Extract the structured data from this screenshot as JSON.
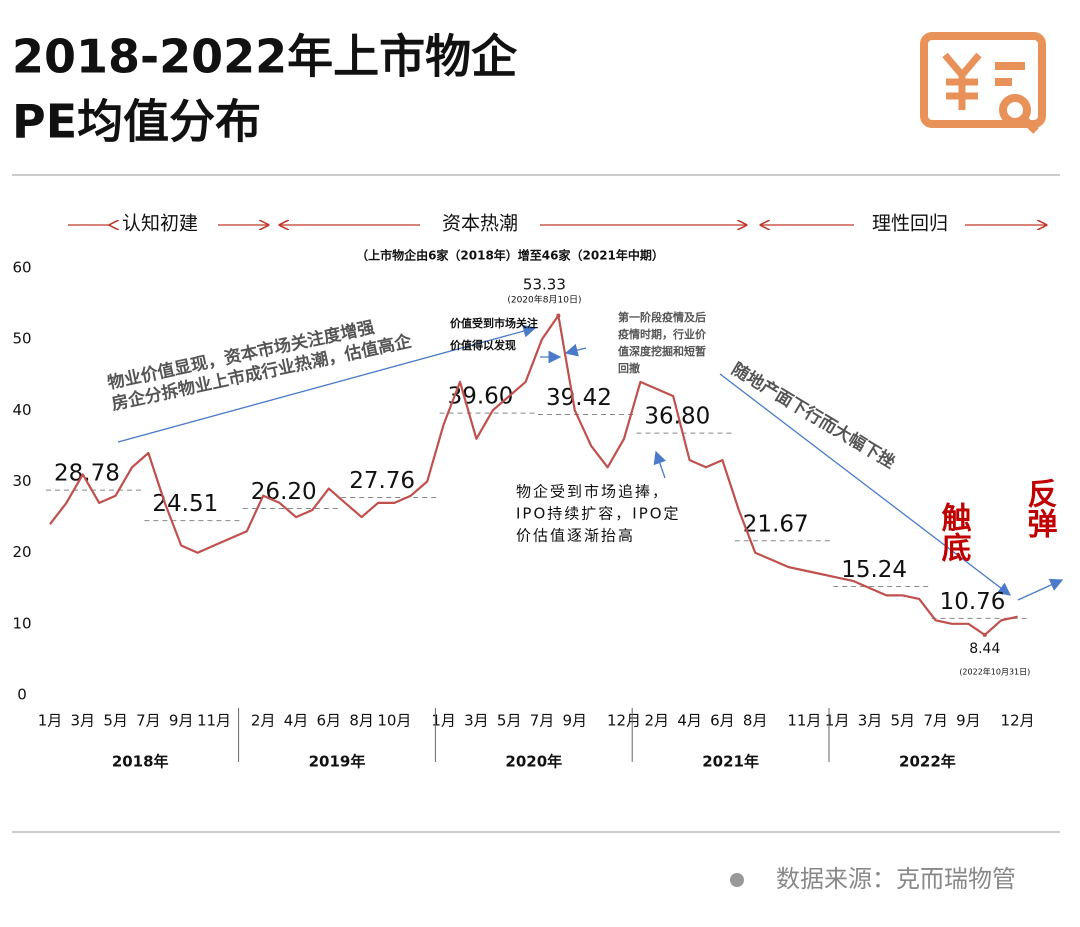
{
  "chart_data": {
    "type": "line",
    "title": [
      "2018-2022年上市物企",
      "PE均值分布"
    ],
    "subtitle": "（上市物企由6家（2018年）增至46家（2021年中期）",
    "phases": [
      "认知初建",
      "资本热潮",
      "理性回归"
    ],
    "x": [
      "2018-01",
      "2018-02",
      "2018-03",
      "2018-04",
      "2018-05",
      "2018-06",
      "2018-07",
      "2018-08",
      "2018-09",
      "2018-10",
      "2018-11",
      "2018-12",
      "2019-01",
      "2019-02",
      "2019-03",
      "2019-04",
      "2019-05",
      "2019-06",
      "2019-07",
      "2019-08",
      "2019-09",
      "2019-10",
      "2019-11",
      "2019-12",
      "2020-01",
      "2020-02",
      "2020-03",
      "2020-04",
      "2020-05",
      "2020-06",
      "2020-07",
      "2020-08",
      "2020-09",
      "2020-10",
      "2020-11",
      "2020-12",
      "2021-01",
      "2021-02",
      "2021-03",
      "2021-04",
      "2021-05",
      "2021-06",
      "2021-07",
      "2021-08",
      "2021-09",
      "2021-10",
      "2021-11",
      "2021-12",
      "2022-01",
      "2022-02",
      "2022-03",
      "2022-04",
      "2022-05",
      "2022-06",
      "2022-07",
      "2022-08",
      "2022-09",
      "2022-10",
      "2022-11",
      "2022-12"
    ],
    "series": [
      {
        "name": "PE均值",
        "color": "#c0504d",
        "values": [
          24,
          27,
          31,
          27,
          28,
          32,
          34,
          27,
          21,
          20,
          21,
          22,
          23,
          28,
          27,
          25,
          26,
          29,
          27,
          25,
          27,
          27,
          28,
          30,
          38,
          44,
          36,
          40,
          42,
          44,
          50,
          53.33,
          40,
          35,
          32,
          36,
          44,
          43,
          42,
          33,
          32,
          33,
          26,
          20,
          19,
          18,
          17.5,
          17,
          16.5,
          16,
          15,
          14,
          14,
          13.5,
          10.5,
          10,
          10,
          8.44,
          10.5,
          11
        ]
      }
    ],
    "peak": {
      "x": "2020-08",
      "value": 53.33,
      "note": "(2020年8月10日)"
    },
    "low": {
      "x": "2022-10",
      "value": 8.44,
      "note": "(2022年10月31日)"
    },
    "averages": [
      {
        "value": 28.78,
        "from": "2018-01",
        "to": "2018-06"
      },
      {
        "value": 24.51,
        "from": "2018-07",
        "to": "2018-12"
      },
      {
        "value": 26.2,
        "label": "26.20",
        "from": "2019-01",
        "to": "2019-06"
      },
      {
        "value": 27.76,
        "from": "2019-07",
        "to": "2019-12"
      },
      {
        "value": 39.6,
        "label": "39.60",
        "from": "2020-01",
        "to": "2020-06"
      },
      {
        "value": 39.42,
        "from": "2020-07",
        "to": "2020-12"
      },
      {
        "value": 36.8,
        "label": "36.80",
        "from": "2021-01",
        "to": "2021-06"
      },
      {
        "value": 21.67,
        "from": "2021-07",
        "to": "2021-12"
      },
      {
        "value": 15.24,
        "from": "2022-01",
        "to": "2022-06"
      },
      {
        "value": 10.76,
        "from": "2022-07",
        "to": "2022-12"
      }
    ],
    "annotations": [
      "物业价值显现，资本市场关注度增强",
      "房企分拆物业上市成行业热潮，估值高企",
      "价值受到市场关注",
      "价值得以发现",
      "第一阶段疫情及后",
      "疫情时期，行业价",
      "值深度挖掘和短暂",
      "回撤",
      "物企受到市场追捧，",
      "IPO持续扩容，IPO定",
      "价估值逐渐抬高",
      "随地产面下行而大幅下挫",
      "触底",
      "反弹"
    ],
    "ylim": [
      0,
      60
    ],
    "yticks": [
      0,
      10,
      20,
      30,
      40,
      50,
      60
    ],
    "xticks": [
      {
        "value": "2018-01",
        "label": "1月"
      },
      {
        "value": "2018-03",
        "label": "3月"
      },
      {
        "value": "2018-05",
        "label": "5月"
      },
      {
        "value": "2018-07",
        "label": "7月"
      },
      {
        "value": "2018-09",
        "label": "9月"
      },
      {
        "value": "2018-11",
        "label": "11月"
      },
      {
        "value": "2019-02",
        "label": "2月"
      },
      {
        "value": "2019-04",
        "label": "4月"
      },
      {
        "value": "2019-06",
        "label": "6月"
      },
      {
        "value": "2019-08",
        "label": "8月"
      },
      {
        "value": "2019-10",
        "label": "10月"
      },
      {
        "value": "2020-01",
        "label": "1月"
      },
      {
        "value": "2020-03",
        "label": "3月"
      },
      {
        "value": "2020-05",
        "label": "5月"
      },
      {
        "value": "2020-07",
        "label": "7月"
      },
      {
        "value": "2020-09",
        "label": "9月"
      },
      {
        "value": "2020-12",
        "label": "12月"
      },
      {
        "value": "2021-02",
        "label": "2月"
      },
      {
        "value": "2021-04",
        "label": "4月"
      },
      {
        "value": "2021-06",
        "label": "6月"
      },
      {
        "value": "2021-08",
        "label": "8月"
      },
      {
        "value": "2021-11",
        "label": "11月"
      },
      {
        "value": "2022-01",
        "label": "1月"
      },
      {
        "value": "2022-03",
        "label": "3月"
      },
      {
        "value": "2022-05",
        "label": "5月"
      },
      {
        "value": "2022-07",
        "label": "7月"
      },
      {
        "value": "2022-09",
        "label": "9月"
      },
      {
        "value": "2022-12",
        "label": "12月"
      }
    ],
    "years": [
      {
        "value": "2018",
        "label": "2018年"
      },
      {
        "value": "2019",
        "label": "2019年"
      },
      {
        "value": "2020",
        "label": "2020年"
      },
      {
        "value": "2021",
        "label": "2021年"
      },
      {
        "value": "2022",
        "label": "2022年"
      }
    ],
    "source": "数据来源：克而瑞物管"
  }
}
